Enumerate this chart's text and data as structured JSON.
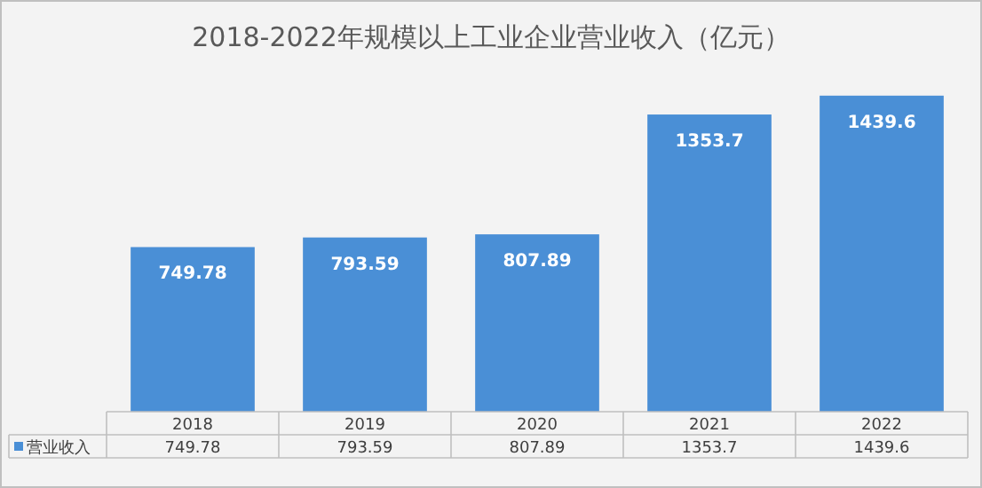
{
  "chart_data": {
    "type": "bar",
    "title": "2018-2022年规模以上工业企业营业收入（亿元）",
    "categories": [
      "2018",
      "2019",
      "2020",
      "2021",
      "2022"
    ],
    "series": [
      {
        "name": "营业收入",
        "color": "#4a8fd6",
        "values": [
          749.78,
          793.59,
          807.89,
          1353.7,
          1439.6
        ],
        "value_labels": [
          "749.78",
          "793.59",
          "807.89",
          "1353.7",
          "1439.6"
        ]
      }
    ],
    "data_labels": true,
    "annotations": [
      "749.78",
      "793.59",
      "807.89",
      "1353.7",
      "1439.6"
    ]
  }
}
